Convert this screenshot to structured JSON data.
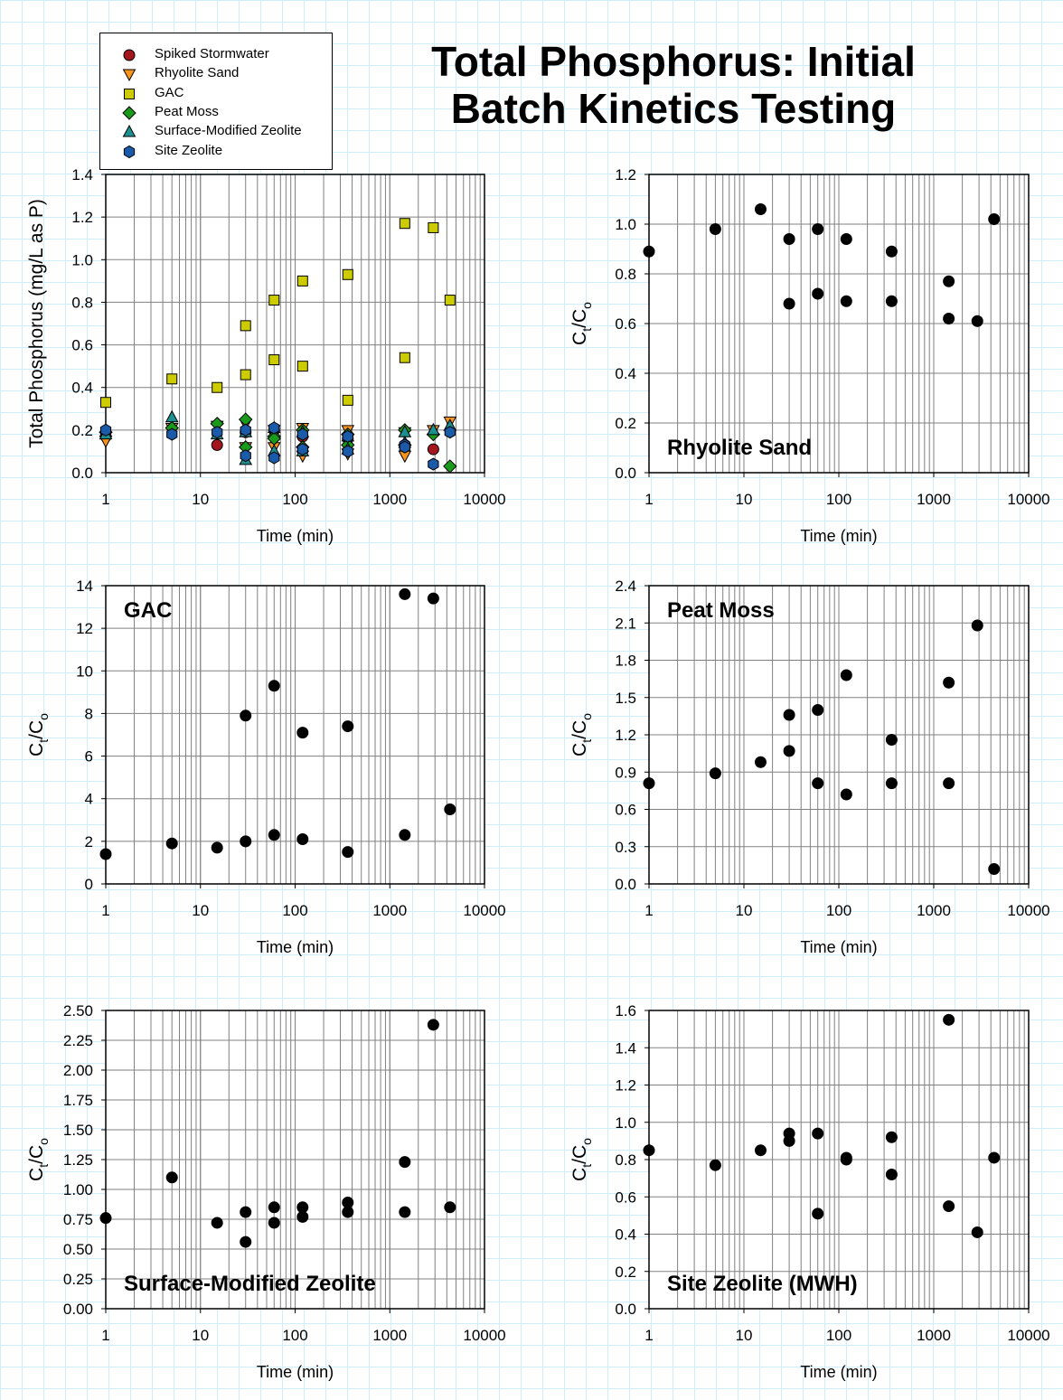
{
  "title": "Total Phosphorus: Initial Batch Kinetics Testing",
  "legend": [
    {
      "name": "Spiked Stormwater",
      "marker": "circle",
      "color": "#a3161e"
    },
    {
      "name": "Rhyolite Sand",
      "marker": "triangle-down",
      "color": "#f7941d"
    },
    {
      "name": "GAC",
      "marker": "square",
      "color": "#cccc00"
    },
    {
      "name": "Peat Moss",
      "marker": "diamond",
      "color": "#1a9a1a"
    },
    {
      "name": "Surface-Modified Zeolite",
      "marker": "triangle-up",
      "color": "#1e8f8f"
    },
    {
      "name": "Site Zeolite",
      "marker": "hexagon",
      "color": "#1b5aa8"
    }
  ],
  "chart_data": [
    {
      "type": "scatter",
      "title": "",
      "xlabel": "Time (min)",
      "ylabel": "Total Phosphorus (mg/L as P)",
      "xscale": "log",
      "xlim": [
        1,
        10000
      ],
      "xticks": [
        "1",
        "10",
        "100",
        "1000",
        "10000"
      ],
      "ylim": [
        0,
        1.4
      ],
      "yticks": [
        "0.0",
        "0.2",
        "0.4",
        "0.6",
        "0.8",
        "1.0",
        "1.2",
        "1.4"
      ],
      "grid": true,
      "legend_position": "top-left, above plot",
      "series": [
        {
          "name": "Spiked Stormwater",
          "x": [
            1,
            15,
            30,
            60,
            120,
            360,
            1440,
            2880
          ],
          "y": [
            0.17,
            0.13,
            0.19,
            0.2,
            0.17,
            0.16,
            0.13,
            0.11
          ]
        },
        {
          "name": "Rhyolite Sand",
          "x": [
            1,
            5,
            15,
            30,
            30,
            60,
            60,
            120,
            120,
            360,
            360,
            1440,
            1440,
            2880,
            4320
          ],
          "y": [
            0.15,
            0.21,
            0.22,
            0.23,
            0.12,
            0.2,
            0.12,
            0.21,
            0.08,
            0.2,
            0.09,
            0.19,
            0.08,
            0.2,
            0.24
          ]
        },
        {
          "name": "GAC",
          "x": [
            1,
            5,
            15,
            30,
            30,
            60,
            60,
            120,
            120,
            360,
            360,
            1440,
            1440,
            2880,
            4320
          ],
          "y": [
            0.33,
            0.44,
            0.4,
            0.69,
            0.46,
            0.81,
            0.53,
            0.9,
            0.5,
            0.93,
            0.34,
            1.17,
            0.54,
            1.15,
            0.81
          ]
        },
        {
          "name": "Peat Moss",
          "x": [
            1,
            5,
            15,
            30,
            30,
            60,
            60,
            120,
            120,
            360,
            360,
            1440,
            1440,
            2880,
            4320
          ],
          "y": [
            0.19,
            0.21,
            0.23,
            0.25,
            0.12,
            0.17,
            0.16,
            0.2,
            0.12,
            0.18,
            0.13,
            0.2,
            0.13,
            0.18,
            0.03
          ]
        },
        {
          "name": "Surface-Modified Zeolite",
          "x": [
            1,
            5,
            15,
            30,
            30,
            60,
            60,
            120,
            120,
            360,
            360,
            1440,
            1440,
            2880,
            4320
          ],
          "y": [
            0.18,
            0.26,
            0.18,
            0.19,
            0.06,
            0.21,
            0.1,
            0.19,
            0.1,
            0.17,
            0.11,
            0.19,
            0.14,
            0.2,
            0.22
          ]
        },
        {
          "name": "Site Zeolite",
          "x": [
            1,
            5,
            15,
            30,
            30,
            60,
            60,
            120,
            120,
            360,
            360,
            1440,
            1440,
            2880,
            4320
          ],
          "y": [
            0.2,
            0.18,
            0.19,
            0.2,
            0.08,
            0.21,
            0.07,
            0.18,
            0.11,
            0.17,
            0.1,
            0.13,
            0.12,
            0.04,
            0.19
          ]
        }
      ]
    },
    {
      "type": "scatter",
      "title": "Rhyolite Sand",
      "xlabel": "Time (min)",
      "ylabel": "Ct/Co",
      "xscale": "log",
      "xlim": [
        1,
        10000
      ],
      "xticks": [
        "1",
        "10",
        "100",
        "1000",
        "10000"
      ],
      "ylim": [
        0,
        1.2
      ],
      "yticks": [
        "0.0",
        "0.2",
        "0.4",
        "0.6",
        "0.8",
        "1.0",
        "1.2"
      ],
      "grid": true,
      "series": [
        {
          "x": [
            1,
            5,
            15,
            30,
            30,
            60,
            60,
            120,
            120,
            360,
            360,
            1440,
            1440,
            2880,
            4320
          ],
          "y": [
            0.89,
            0.98,
            1.06,
            0.94,
            0.68,
            0.98,
            0.72,
            0.94,
            0.69,
            0.89,
            0.69,
            0.77,
            0.62,
            0.61,
            1.02
          ]
        }
      ]
    },
    {
      "type": "scatter",
      "title": "GAC",
      "xlabel": "Time (min)",
      "ylabel": "Ct/Co",
      "xscale": "log",
      "xlim": [
        1,
        10000
      ],
      "xticks": [
        "1",
        "10",
        "100",
        "1000",
        "10000"
      ],
      "ylim": [
        0,
        14
      ],
      "yticks": [
        "0",
        "2",
        "4",
        "6",
        "8",
        "10",
        "12",
        "14"
      ],
      "grid": true,
      "series": [
        {
          "x": [
            1,
            5,
            15,
            30,
            30,
            60,
            60,
            120,
            120,
            360,
            360,
            1440,
            1440,
            2880,
            4320
          ],
          "y": [
            1.4,
            1.9,
            1.7,
            7.9,
            2.0,
            9.3,
            2.3,
            7.1,
            2.1,
            7.4,
            1.5,
            13.6,
            2.3,
            13.4,
            3.5
          ]
        }
      ]
    },
    {
      "type": "scatter",
      "title": "Peat Moss",
      "xlabel": "Time (min)",
      "ylabel": "Ct/Co",
      "xscale": "log",
      "xlim": [
        1,
        10000
      ],
      "xticks": [
        "1",
        "10",
        "100",
        "1000",
        "10000"
      ],
      "ylim": [
        0,
        2.4
      ],
      "yticks": [
        "0.0",
        "0.3",
        "0.6",
        "0.9",
        "1.2",
        "1.5",
        "1.8",
        "2.1",
        "2.4"
      ],
      "grid": true,
      "series": [
        {
          "x": [
            1,
            5,
            15,
            30,
            30,
            60,
            60,
            120,
            120,
            360,
            360,
            1440,
            1440,
            2880,
            4320
          ],
          "y": [
            0.81,
            0.89,
            0.98,
            1.36,
            1.07,
            1.4,
            0.81,
            1.68,
            0.72,
            1.16,
            0.81,
            1.62,
            0.81,
            2.08,
            0.12
          ]
        }
      ]
    },
    {
      "type": "scatter",
      "title": "Surface-Modified Zeolite",
      "xlabel": "Time (min)",
      "ylabel": "Ct/Co",
      "xscale": "log",
      "xlim": [
        1,
        10000
      ],
      "xticks": [
        "1",
        "10",
        "100",
        "1000",
        "10000"
      ],
      "ylim": [
        0,
        2.5
      ],
      "yticks": [
        "0.00",
        "0.25",
        "0.50",
        "0.75",
        "1.00",
        "1.25",
        "1.50",
        "1.75",
        "2.00",
        "2.25",
        "2.50"
      ],
      "grid": true,
      "series": [
        {
          "x": [
            1,
            5,
            15,
            30,
            30,
            60,
            60,
            120,
            120,
            360,
            360,
            1440,
            1440,
            2880,
            4320
          ],
          "y": [
            0.76,
            1.1,
            0.72,
            0.81,
            0.56,
            0.85,
            0.72,
            0.85,
            0.77,
            0.89,
            0.81,
            1.23,
            0.81,
            2.38,
            0.85
          ]
        }
      ]
    },
    {
      "type": "scatter",
      "title": "Site Zeolite (MWH)",
      "xlabel": "Time (min)",
      "ylabel": "Ct/Co",
      "xscale": "log",
      "xlim": [
        1,
        10000
      ],
      "xticks": [
        "1",
        "10",
        "100",
        "1000",
        "10000"
      ],
      "ylim": [
        0,
        1.6
      ],
      "yticks": [
        "0.0",
        "0.2",
        "0.4",
        "0.6",
        "0.8",
        "1.0",
        "1.2",
        "1.4",
        "1.6"
      ],
      "grid": true,
      "series": [
        {
          "x": [
            1,
            5,
            15,
            30,
            30,
            60,
            60,
            120,
            120,
            360,
            360,
            1440,
            1440,
            2880,
            4320
          ],
          "y": [
            0.85,
            0.77,
            0.85,
            0.94,
            0.9,
            0.94,
            0.51,
            0.81,
            0.8,
            0.92,
            0.72,
            1.55,
            0.55,
            0.41,
            0.81
          ]
        }
      ]
    }
  ]
}
